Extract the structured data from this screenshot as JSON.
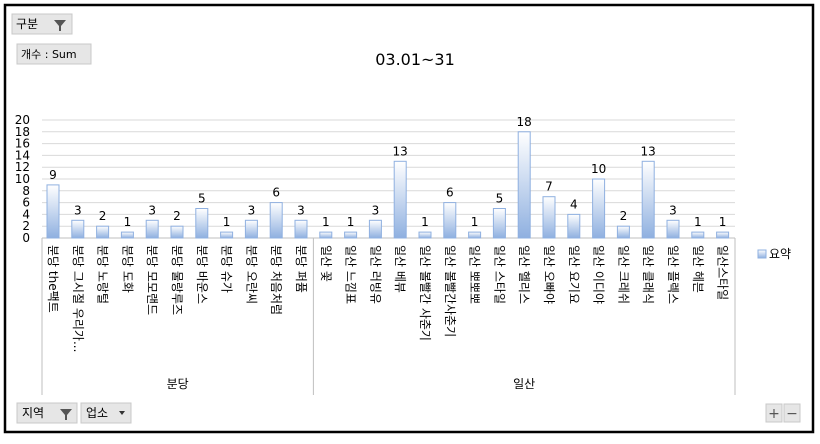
{
  "chart_data": {
    "type": "bar",
    "title": "03.01~31",
    "series": [
      {
        "name": "요약",
        "color": "#8fb0e0"
      }
    ],
    "groups": [
      {
        "label": "분당",
        "categories": [
          "분당 the팩트",
          "분당 그시절 우리가...",
          "분당 노랑털",
          "분당 도화",
          "분당 모모랜드",
          "분당 물랑루즈",
          "분당 바운스",
          "분당 슈가",
          "분당 오란씨",
          "분당 처음처럼",
          "분당 퍼퓸"
        ],
        "values": [
          9,
          3,
          2,
          1,
          3,
          2,
          5,
          1,
          3,
          6,
          3
        ]
      },
      {
        "label": "일산",
        "categories": [
          "일산 꽃",
          "일산 느낌표",
          "일산 러빙유",
          "일산 베뷰",
          "일산 볼빨간 사춘기",
          "일산 볼빨간사춘기",
          "일산 뽀뽀뽀",
          "일산 스타일",
          "일산 헬리스",
          "일산 오빠야",
          "일산 요기요",
          "일산 이디야",
          "일산 크레쉬",
          "일산 클래식",
          "일산 플렉스",
          "일산 헤븐",
          "일산스타일"
        ],
        "values": [
          1,
          1,
          3,
          13,
          1,
          6,
          1,
          5,
          18,
          7,
          4,
          10,
          2,
          13,
          3,
          1,
          1
        ]
      }
    ],
    "ylim": [
      0,
      20
    ],
    "yticks": [
      0,
      2,
      4,
      6,
      8,
      10,
      12,
      14,
      16,
      18,
      20
    ],
    "grid": true
  },
  "pivot_buttons": {
    "filter_field": "구분",
    "value_field": "개수 : Sum",
    "axis_fields": [
      "지역",
      "업소"
    ],
    "zoom": [
      "+",
      "−"
    ]
  }
}
